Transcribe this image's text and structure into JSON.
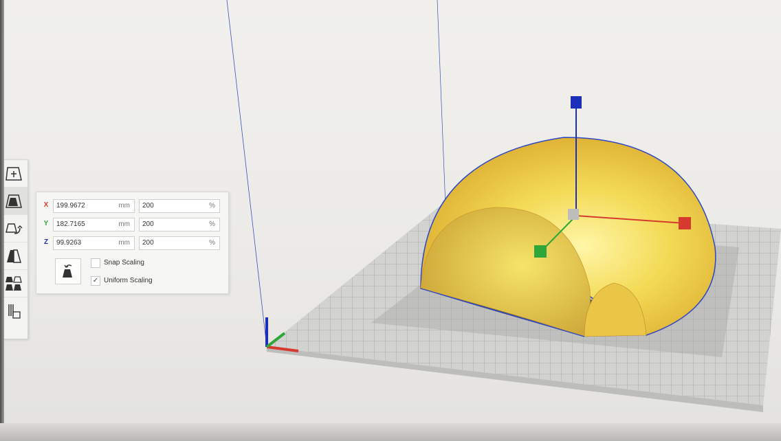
{
  "scale_panel": {
    "x": {
      "label": "X",
      "mm": "199.9672",
      "mm_unit": "mm",
      "percent": "200",
      "percent_unit": "%"
    },
    "y": {
      "label": "Y",
      "mm": "182.7165",
      "mm_unit": "mm",
      "percent": "200",
      "percent_unit": "%"
    },
    "z": {
      "label": "Z",
      "mm": "99.9263",
      "mm_unit": "mm",
      "percent": "200",
      "percent_unit": "%"
    },
    "snap_scaling": {
      "label": "Snap Scaling",
      "checked": false
    },
    "uniform_scaling": {
      "label": "Uniform Scaling",
      "checked": true,
      "mark": "✓"
    }
  },
  "toolbar": {
    "tools": [
      {
        "icon": "move-icon"
      },
      {
        "icon": "scale-icon",
        "active": true
      },
      {
        "icon": "rotate-icon"
      },
      {
        "icon": "mirror-icon"
      },
      {
        "icon": "per-model-settings-icon"
      },
      {
        "icon": "support-blocker-icon"
      }
    ]
  },
  "colors": {
    "axis_x": "#d63a2f",
    "axis_y": "#2fa63a",
    "axis_z": "#1d2fb8",
    "model": "#f0d34a",
    "build_plate": "#c8c8c6"
  }
}
